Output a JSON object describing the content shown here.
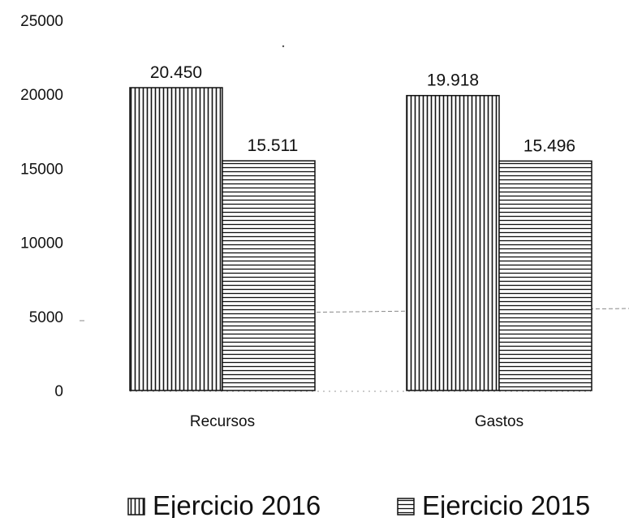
{
  "chart_data": {
    "type": "bar",
    "title": "",
    "xlabel": "",
    "ylabel": "",
    "categories": [
      "Recursos",
      "Gastos"
    ],
    "series": [
      {
        "name": "Ejercicio 2016",
        "values": [
          20450,
          19918
        ],
        "data_labels": [
          "20.450",
          "19.918"
        ],
        "pattern": "vertical-stripes"
      },
      {
        "name": "Ejercicio 2015",
        "values": [
          15511,
          15496
        ],
        "data_labels": [
          "15.511",
          "15.496"
        ],
        "pattern": "horizontal-stripes"
      }
    ],
    "ylim": [
      0,
      25000
    ],
    "yticks": [
      0,
      5000,
      10000,
      15000,
      20000,
      25000
    ],
    "ytick_labels": [
      "0",
      "5000",
      "10000",
      "15000",
      "20000",
      "25000"
    ],
    "grid": false,
    "legend_position": "bottom",
    "colors": {
      "ink": "#111111",
      "background": "#ffffff"
    }
  }
}
